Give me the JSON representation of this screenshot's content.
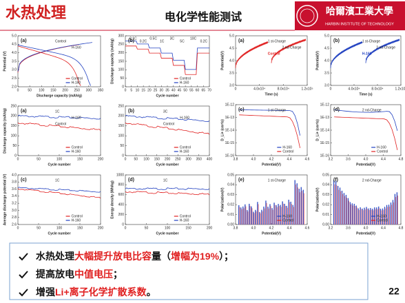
{
  "header": {
    "section": "水热处理",
    "title": "电化学性能测试",
    "logo": "哈爾濱工業大學",
    "logo_sub": "HARBIN INSTITUTE OF TECHNOLOGY"
  },
  "figures": [
    {
      "panel": "(a)",
      "x_label": "Discharge capacity (mAh/g)",
      "y_label": "Potential (V)",
      "xticks": [
        "0",
        "50",
        "100",
        "150",
        "200",
        "250",
        "300",
        "350"
      ],
      "yticks": [
        "2.0",
        "2.5",
        "3.0",
        "3.5",
        "4.0",
        "4.5",
        "5.0"
      ],
      "annotations": [
        "Control",
        "H-160"
      ],
      "legend": [
        {
          "name": "Control",
          "color": "#e02020"
        },
        {
          "name": "H-160",
          "color": "#2040c0"
        }
      ]
    },
    {
      "panel": "(b)",
      "x_label": "Cycle number",
      "y_label": "Discharge capacity (mAh/g)",
      "xticks": [
        "0",
        "5",
        "10",
        "15",
        "20",
        "25",
        "30",
        "35",
        "40",
        "45",
        "50",
        "55",
        "60",
        "65",
        "70"
      ],
      "yticks": [
        "0",
        "50",
        "100",
        "150",
        "200",
        "250",
        "300"
      ],
      "annotations": [
        "0.1C",
        "0.2C",
        "0.5C",
        "1C",
        "3C",
        "5C",
        "10C",
        "0.2C"
      ],
      "legend": [
        {
          "name": "Control",
          "color": "#e02020"
        },
        {
          "name": "H-160",
          "color": "#2040c0"
        }
      ]
    },
    {
      "panel": "(a)",
      "x_label": "Cycle number",
      "y_label": "Discharge capacity (mAh/g)",
      "xticks": [
        "0",
        "50",
        "100",
        "150",
        "200"
      ],
      "yticks": [
        "0",
        "50",
        "100",
        "150",
        "200",
        "250"
      ],
      "annotations": [
        "1C",
        "H-160",
        "Control"
      ],
      "legend": [
        {
          "name": "Control",
          "color": "#e02020"
        },
        {
          "name": "H-160",
          "color": "#2040c0"
        }
      ]
    },
    {
      "panel": "(b)",
      "x_label": "Cycle number",
      "y_label": "",
      "xticks": [
        "0",
        "50",
        "100",
        "150",
        "200",
        "250",
        "300",
        "350",
        "400"
      ],
      "yticks": [
        "0",
        "50",
        "100",
        "150",
        "200",
        "250"
      ],
      "annotations": [
        "3C",
        "H-160",
        "Control"
      ],
      "legend": [
        {
          "name": "Control",
          "color": "#e02020"
        },
        {
          "name": "H-160",
          "color": "#2040c0"
        }
      ]
    },
    {
      "panel": "(c)",
      "x_label": "Cycle number",
      "y_label": "Average discharge potential (V)",
      "xticks": [
        "0",
        "50",
        "100",
        "150",
        "200"
      ],
      "yticks": [
        "2.6",
        "2.8",
        "3.0",
        "3.2",
        "3.4",
        "3.6",
        "3.8",
        "4.0"
      ],
      "annotations": [
        "1C"
      ],
      "legend": [
        {
          "name": "Control",
          "color": "#e02020"
        },
        {
          "name": "H-160",
          "color": "#2040c0"
        }
      ]
    },
    {
      "panel": "(d)",
      "x_label": "Cycle number",
      "y_label": "Energy density (Wh/kg)",
      "xticks": [
        "0",
        "50",
        "100",
        "150",
        "200"
      ],
      "yticks": [
        "0",
        "200",
        "400",
        "600",
        "800",
        "1000"
      ],
      "annotations": [
        "1C"
      ],
      "legend": [
        {
          "name": "Control",
          "color": "#e02020"
        },
        {
          "name": "H-160",
          "color": "#2040c0"
        }
      ]
    },
    {
      "panel": "(a)",
      "x_label": "Time (s)",
      "y_label": "Potential(V)",
      "xticks": [
        "0",
        "4.0x10⁴",
        "8.0x10⁴",
        "1.2x10⁵"
      ],
      "yticks": [
        "3.0",
        "3.5",
        "4.0",
        "4.5",
        "5.0"
      ],
      "annotations": [
        "1 st-Charge",
        "2 nd-Charge",
        "Control"
      ],
      "legend": []
    },
    {
      "panel": "(b)",
      "x_label": "Time (s)",
      "y_label": "Potential(V)",
      "xticks": [
        "0",
        "4.0x10⁴",
        "8.0x10⁴",
        "1.2x10⁵"
      ],
      "yticks": [
        "3.0",
        "3.5",
        "4.0",
        "4.5",
        "5.0"
      ],
      "annotations": [
        "1 st-Charge",
        "2 nd-Charge",
        "H-160"
      ],
      "legend": []
    },
    {
      "panel": "(c)",
      "x_label": "Potential(V)",
      "y_label": "D_Li+ (cm²/s)",
      "xticks": [
        "3.8",
        "4.0",
        "4.2",
        "4.4",
        "4.6"
      ],
      "yticks": [
        "1E-16",
        "1E-15",
        "1E-14",
        "1E-13",
        "1E-12"
      ],
      "annotations": [
        "1 st-Charge"
      ],
      "legend": [
        {
          "name": "H-160",
          "color": "#2040c0"
        },
        {
          "name": "Control",
          "color": "#e02020"
        }
      ]
    },
    {
      "panel": "(d)",
      "x_label": "Potential(V)",
      "y_label": "D_Li+ (cm²/s)",
      "xticks": [
        "3.2",
        "3.6",
        "4.0",
        "4.4",
        "4.8"
      ],
      "yticks": [
        "1E-16",
        "1E-15",
        "1E-14",
        "1E-13",
        "1E-12"
      ],
      "annotations": [
        "2 nd-Charge"
      ],
      "legend": [
        {
          "name": "H-160",
          "color": "#2040c0"
        },
        {
          "name": "Control",
          "color": "#e02020"
        }
      ]
    },
    {
      "panel": "(e)",
      "x_label": "Potential(V)",
      "y_label": "Polarization(V)",
      "xticks": [
        "3.8",
        "4.0",
        "4.2",
        "4.4",
        "4.6"
      ],
      "yticks": [
        "0.00",
        "0.01",
        "0.02",
        "0.03",
        "0.04",
        "0.05"
      ],
      "annotations": [
        "1 st-Charge"
      ],
      "legend": [
        {
          "name": "H-160",
          "color": "#2040c0"
        },
        {
          "name": "Control",
          "color": "#e02020"
        }
      ]
    },
    {
      "panel": "(f)",
      "x_label": "Potential(V)",
      "y_label": "Polarization(V)",
      "xticks": [
        "3.2",
        "3.6",
        "4.0",
        "4.4",
        "4.8"
      ],
      "yticks": [
        "0.00",
        "0.01",
        "0.02",
        "0.03",
        "0.04",
        "0.05"
      ],
      "annotations": [
        "2 nd-Charge"
      ],
      "legend": [
        {
          "name": "H-160",
          "color": "#2040c0"
        },
        {
          "name": "Control",
          "color": "#e02020"
        }
      ]
    }
  ],
  "bullets": [
    [
      {
        "text": "水热处理",
        "red": false
      },
      {
        "text": "大幅提升放电比容",
        "red": true
      },
      {
        "text": "量（",
        "red": false
      },
      {
        "text": "增幅为19%",
        "red": true
      },
      {
        "text": "）；",
        "red": false
      }
    ],
    [
      {
        "text": "提高放电",
        "red": false
      },
      {
        "text": "中值电压",
        "red": true
      },
      {
        "text": "；",
        "red": false
      }
    ],
    [
      {
        "text": "增强",
        "red": false
      },
      {
        "text": "Li+离子化学扩散系数",
        "red": true
      },
      {
        "text": "。",
        "red": false
      }
    ]
  ],
  "page": "22"
}
